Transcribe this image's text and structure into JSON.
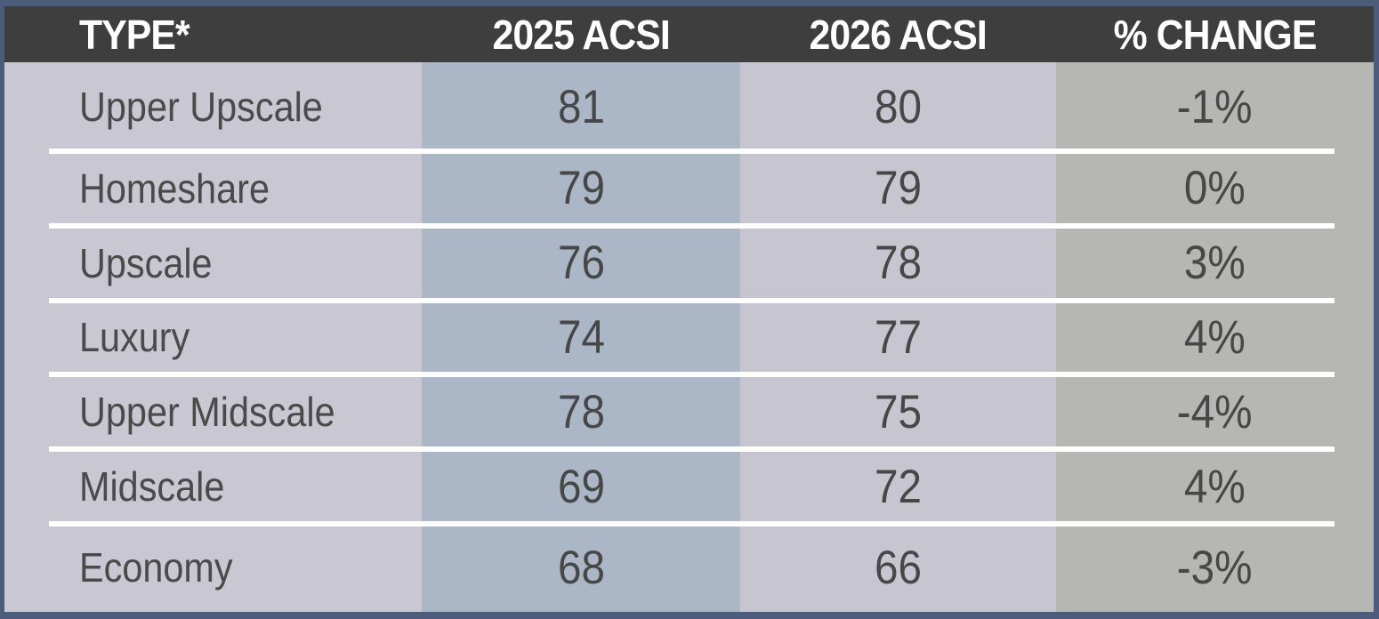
{
  "table": {
    "headers": [
      "TYPE*",
      "2025 ACSI",
      "2026 ACSI",
      "% CHANGE"
    ],
    "rows": [
      [
        "Upper Upscale",
        "81",
        "80",
        "-1%"
      ],
      [
        "Homeshare",
        "79",
        "79",
        "0%"
      ],
      [
        "Upscale",
        "76",
        "78",
        "3%"
      ],
      [
        "Luxury",
        "74",
        "77",
        "4%"
      ],
      [
        "Upper Midscale",
        "78",
        "75",
        "-4%"
      ],
      [
        "Midscale",
        "69",
        "72",
        "4%"
      ],
      [
        "Economy",
        "68",
        "66",
        "-3%"
      ]
    ]
  },
  "colors": {
    "frame": "#4e5c7b",
    "header-bg": "#3e3e3e",
    "header-text": "#ffffff",
    "col-type": "#c8c7d2",
    "col-2025": "#abb7c6",
    "col-2026": "#c7c6d0",
    "col-chg": "#b6b7b2",
    "separator": "#ffffff",
    "cell-text": "#474747",
    "label-text": "#4a4a4a"
  },
  "chart_data": {
    "type": "table",
    "title": "",
    "columns": [
      "TYPE*",
      "2025 ACSI",
      "2026 ACSI",
      "% CHANGE"
    ],
    "categories": [
      "Upper Upscale",
      "Homeshare",
      "Upscale",
      "Luxury",
      "Upper Midscale",
      "Midscale",
      "Economy"
    ],
    "series": [
      {
        "name": "2025 ACSI",
        "values": [
          81,
          79,
          76,
          74,
          78,
          69,
          68
        ]
      },
      {
        "name": "2026 ACSI",
        "values": [
          80,
          79,
          78,
          77,
          75,
          72,
          66
        ]
      },
      {
        "name": "% CHANGE",
        "values": [
          "-1%",
          "0%",
          "3%",
          "4%",
          "-4%",
          "4%",
          "-3%"
        ]
      }
    ]
  }
}
